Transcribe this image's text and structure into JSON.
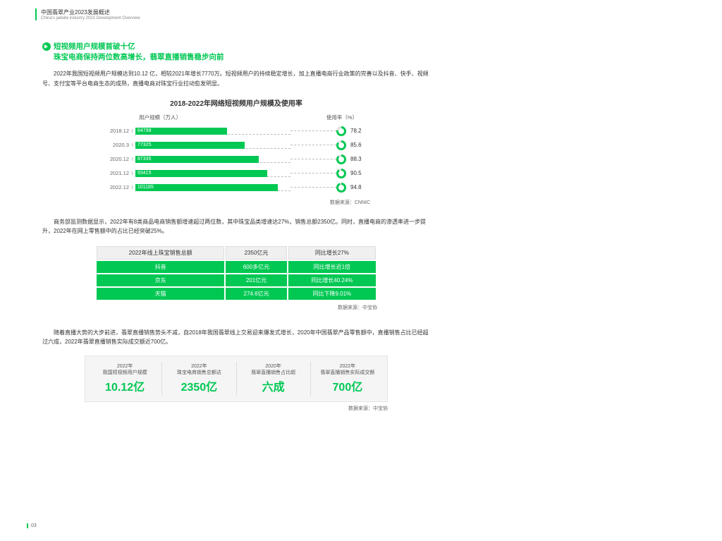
{
  "header": {
    "title": "中国翡翠产业2023发展概述",
    "subtitle": "China's jadeite industry 2023 Development Overview"
  },
  "section": {
    "title_line1": "短视频用户规模首破十亿",
    "title_line2": "珠宝电商保持两位数高增长，翡翠直播销售稳步向前",
    "para1": "2022年我国短视频用户规模达到10.12 亿，相较2021年增长7770万。短视频用户的持续稳定增长，加上直播电商行业政策的完善以及抖音、快手、视频号、支付宝等平台电商生态的成熟，直播电商对珠宝行业拉动愈发明显。",
    "para2": "商务部监测数据显示，2022年有8类商品电商销售额增速超过两位数，其中珠宝品类增速达27%，销售总额2350亿。同时，直播电商的渗透率进一步提升，2022年在网上零售额中的占比已经突破25%。",
    "para3": "随着直播大势的大步前进，翡翠直播销售势头不减，自2018年我国翡翠线上交易迎来爆发式增长，2020年中国翡翠产品零售额中，直播销售占比已经超过六成，2022年翡翠直播销售实际成交额近700亿。"
  },
  "chart": {
    "title": "2018-2022年网络短视频用户规模及使用率",
    "left_label": "用户规模（万人）",
    "right_label": "使用率（%）",
    "max": 110000,
    "rows": [
      {
        "period": "2018.12",
        "users": 64798,
        "rate": 78.2
      },
      {
        "period": "2020.3",
        "users": 77325,
        "rate": 85.6
      },
      {
        "period": "2020.12",
        "users": 87335,
        "rate": 88.3
      },
      {
        "period": "2021.12",
        "users": 93415,
        "rate": 90.5
      },
      {
        "period": "2022.12",
        "users": 101185,
        "rate": 94.8
      }
    ],
    "bar_color": "#00c853",
    "ring_track": "#e0e0e0",
    "source": "数据来源：CNNIC"
  },
  "table": {
    "header": [
      "2022年线上珠宝销售总额",
      "2350亿元",
      "同比增长27%"
    ],
    "rows": [
      [
        "抖音",
        "600多亿元",
        "同比增长近1倍"
      ],
      [
        "京东",
        "201亿元",
        "同比增长40.24%"
      ],
      [
        "天猫",
        "274.6亿元",
        "同比下降9.01%"
      ]
    ],
    "source": "数据来源：中宝协"
  },
  "stats": {
    "items": [
      {
        "lbl1": "2022年",
        "lbl2": "我国短视频用户规模",
        "val": "10.12亿"
      },
      {
        "lbl1": "2022年",
        "lbl2": "珠宝电商销售总额达",
        "val": "2350亿"
      },
      {
        "lbl1": "2020年",
        "lbl2": "翡翠直播销售占比超",
        "val": "六成"
      },
      {
        "lbl1": "2022年",
        "lbl2": "翡翠直播销售实际成交额",
        "val": "700亿"
      }
    ],
    "source": "数据来源：中宝协"
  },
  "page_num": "03"
}
